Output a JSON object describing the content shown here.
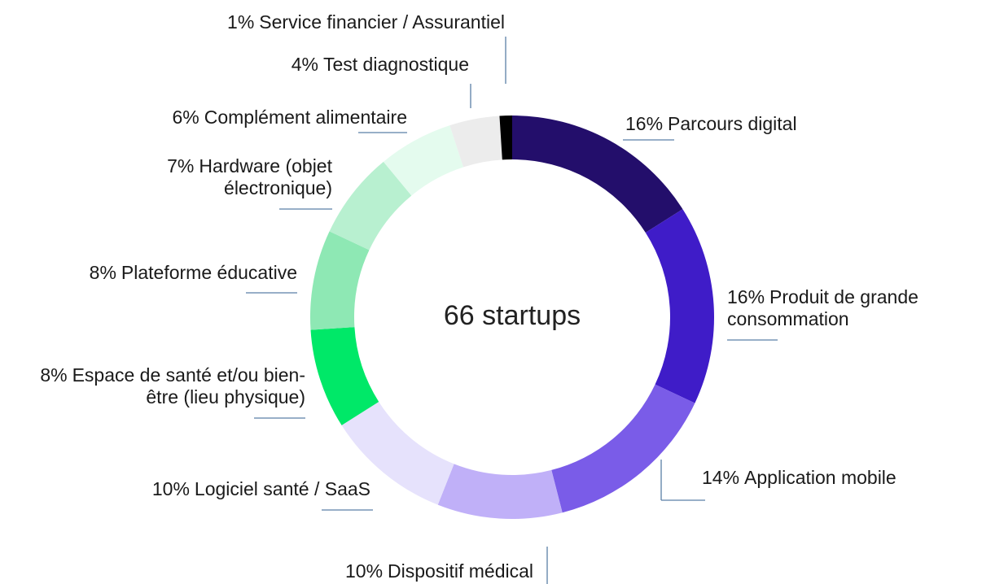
{
  "chart_data": {
    "type": "pie",
    "center_label": "66 startups",
    "categories": [
      "Parcours digital",
      "Produit de grande consommation",
      "Application mobile",
      "Dispositif médical",
      "Logiciel santé / SaaS",
      "Espace de santé et/ou bien-être (lieu physique)",
      "Plateforme éducative",
      "Hardware (objet électronique)",
      "Complément alimentaire",
      "Test diagnostique",
      "Service financier / Assurantiel"
    ],
    "values": [
      16,
      16,
      14,
      10,
      10,
      8,
      8,
      7,
      6,
      4,
      1
    ],
    "value_labels": [
      "16%",
      "16%",
      "14%",
      "10%",
      "10%",
      "8%",
      "8%",
      "7%",
      "6%",
      "4%",
      "1%"
    ],
    "colors": [
      "#230e6b",
      "#3f1cc8",
      "#7a5ce8",
      "#c0b0f8",
      "#e6e2fc",
      "#00e868",
      "#8ee8b4",
      "#b8f0d0",
      "#e4fbee",
      "#ececec",
      "#000000"
    ]
  }
}
